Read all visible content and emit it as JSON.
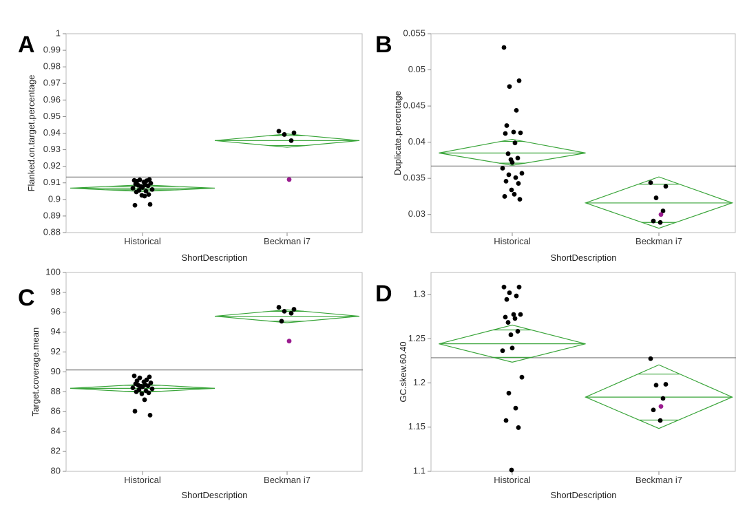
{
  "chart_data": [
    {
      "panel": "A",
      "type": "scatter",
      "xlabel": "ShortDescription",
      "ylabel": "Flanked.on.target.percentage",
      "categories": [
        "Historical",
        "Beckman i7"
      ],
      "ylim": [
        0.88,
        1.0
      ],
      "yticks": [
        "0.88",
        "0.89",
        "0.9",
        "0.91",
        "0.92",
        "0.93",
        "0.94",
        "0.95",
        "0.96",
        "0.97",
        "0.98",
        "0.99",
        "1"
      ],
      "grand_mean": 0.9135,
      "groups": [
        {
          "name": "Historical",
          "mean": 0.9068,
          "ci": [
            0.9048,
            0.9088
          ],
          "bars": [
            0.9058,
            0.9078
          ],
          "points": [
            0.9115,
            0.912,
            0.9118,
            0.9113,
            0.911,
            0.9105,
            0.9098,
            0.9092,
            0.9088,
            0.9085,
            0.9082,
            0.9078,
            0.9072,
            0.9068,
            0.906,
            0.9055,
            0.905,
            0.9045,
            0.903,
            0.9025,
            0.902,
            0.8965,
            0.897
          ]
        },
        {
          "name": "Beckman i7",
          "mean": 0.9355,
          "ci": [
            0.9315,
            0.9395
          ],
          "bars": [
            0.9325,
            0.9385
          ],
          "points": [
            0.9412,
            0.9402,
            0.9392,
            0.9355
          ],
          "highlight": [
            0.912
          ]
        }
      ]
    },
    {
      "panel": "B",
      "type": "scatter",
      "xlabel": "ShortDescription",
      "ylabel": "Duplicate.percentage",
      "categories": [
        "Historical",
        "Beckman i7"
      ],
      "ylim": [
        0.0275,
        0.055
      ],
      "yticks": [
        "0.03",
        "0.035",
        "0.04",
        "0.045",
        "0.05",
        "0.055"
      ],
      "grand_mean": 0.0367,
      "groups": [
        {
          "name": "Historical",
          "mean": 0.0385,
          "ci": [
            0.0368,
            0.0404
          ],
          "bars": [
            0.0371,
            0.0401
          ],
          "points": [
            0.0531,
            0.0485,
            0.0477,
            0.0444,
            0.0423,
            0.0414,
            0.0413,
            0.0412,
            0.0399,
            0.0384,
            0.0378,
            0.0376,
            0.0372,
            0.0364,
            0.0357,
            0.0355,
            0.0351,
            0.0346,
            0.0343,
            0.0334,
            0.0328,
            0.0325,
            0.0321
          ]
        },
        {
          "name": "Beckman i7",
          "mean": 0.0316,
          "ci": [
            0.0281,
            0.0352
          ],
          "bars": [
            0.0289,
            0.0342
          ],
          "points": [
            0.0344,
            0.0339,
            0.0323,
            0.0305,
            0.0291,
            0.0289
          ],
          "highlight": [
            0.03
          ]
        }
      ]
    },
    {
      "panel": "C",
      "type": "scatter",
      "xlabel": "ShortDescription",
      "ylabel": "Target.coverage.mean",
      "categories": [
        "Historical",
        "Beckman i7"
      ],
      "ylim": [
        80,
        100
      ],
      "yticks": [
        "80",
        "82",
        "84",
        "86",
        "88",
        "90",
        "92",
        "94",
        "96",
        "98",
        "100"
      ],
      "grand_mean": 90.2,
      "groups": [
        {
          "name": "Historical",
          "mean": 88.35,
          "ci": [
            87.95,
            88.75
          ],
          "bars": [
            88.05,
            88.65
          ],
          "points": [
            89.6,
            89.5,
            89.4,
            89.2,
            89.1,
            89.0,
            88.9,
            88.8,
            88.7,
            88.65,
            88.6,
            88.55,
            88.5,
            88.4,
            88.3,
            88.2,
            88.1,
            88.0,
            87.9,
            87.8,
            87.2,
            86.05,
            85.65
          ]
        },
        {
          "name": "Beckman i7",
          "mean": 95.6,
          "ci": [
            94.95,
            96.25
          ],
          "bars": [
            95.1,
            96.1
          ],
          "points": [
            96.5,
            96.3,
            96.1,
            95.9,
            95.1
          ],
          "highlight": [
            93.1
          ]
        }
      ]
    },
    {
      "panel": "D",
      "type": "scatter",
      "xlabel": "ShortDescription",
      "ylabel": "GC.skew.60.40",
      "categories": [
        "Historical",
        "Beckman i7"
      ],
      "ylim": [
        1.1,
        1.325
      ],
      "yticks": [
        "1.1",
        "1.15",
        "1.2",
        "1.25",
        "1.3"
      ],
      "grand_mean": 1.2285,
      "groups": [
        {
          "name": "Historical",
          "mean": 1.2443,
          "ci": [
            1.2235,
            1.2655
          ],
          "bars": [
            1.229,
            1.26
          ],
          "points": [
            1.3085,
            1.3085,
            1.302,
            1.2985,
            1.2945,
            1.2775,
            1.2775,
            1.2745,
            1.273,
            1.2685,
            1.2585,
            1.2545,
            1.2395,
            1.2365,
            1.2065,
            1.1885,
            1.1715,
            1.1575,
            1.1495,
            1.1015
          ]
        },
        {
          "name": "Beckman i7",
          "mean": 1.184,
          "ci": [
            1.1485,
            1.2205
          ],
          "bars": [
            1.158,
            1.21
          ],
          "points": [
            1.2275,
            1.1985,
            1.1975,
            1.1825,
            1.1695,
            1.1575
          ],
          "highlight": [
            1.1735
          ]
        }
      ]
    }
  ]
}
